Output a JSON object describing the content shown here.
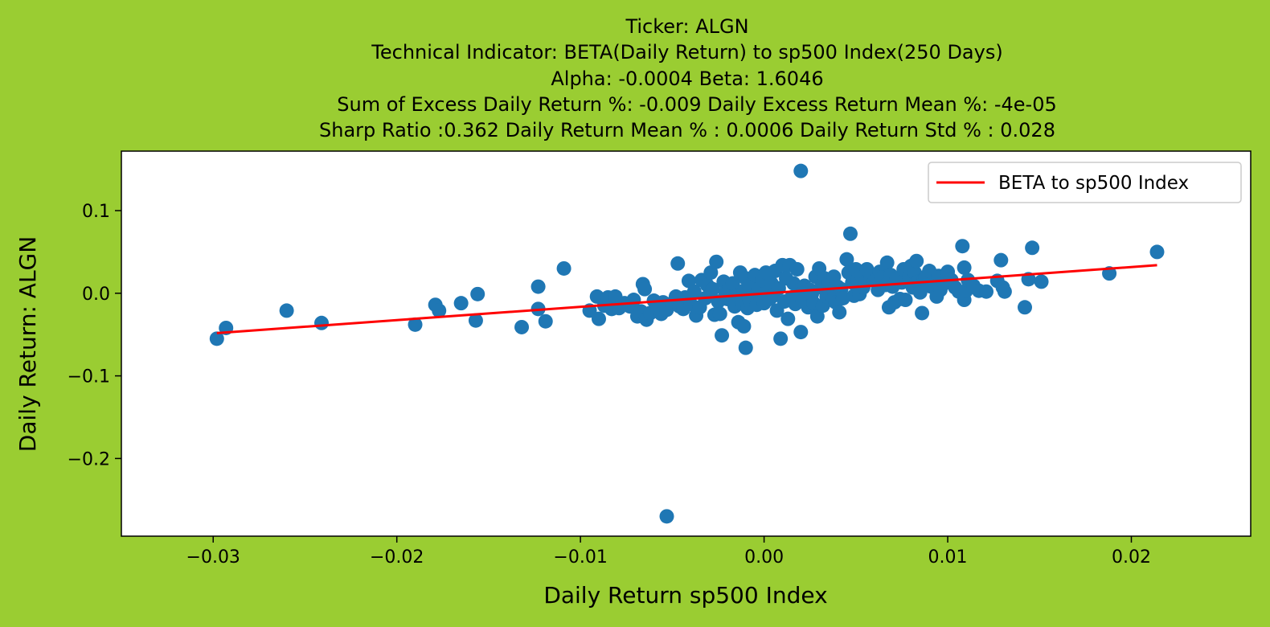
{
  "chart_data": {
    "type": "scatter",
    "title_lines": [
      "Ticker: ALGN",
      "Technical Indicator: BETA(Daily Return) to sp500 Index(250 Days)",
      "Alpha: -0.0004   Beta: 1.6046",
      "Sum of Excess Daily Return %: -0.009   Daily Excess Return Mean %: -4e-05",
      "Sharp Ratio :0.362    Daily Return Mean % : 0.0006    Daily Return Std % : 0.028"
    ],
    "xlabel": "Daily Return sp500 Index",
    "ylabel": "Daily Return: ALGN",
    "xlim": [
      -0.035,
      0.0265
    ],
    "ylim": [
      -0.294,
      0.172
    ],
    "xticks": [
      -0.03,
      -0.02,
      -0.01,
      0.0,
      0.01,
      0.02
    ],
    "xtick_labels": [
      "−0.03",
      "−0.02",
      "−0.01",
      "0.00",
      "0.01",
      "0.02"
    ],
    "yticks": [
      0.1,
      0.0,
      -0.1,
      -0.2
    ],
    "ytick_labels": [
      "0.1",
      "0.0",
      "−0.1",
      "−0.2"
    ],
    "legend": {
      "placement": "top-right",
      "label": "BETA to sp500 Index"
    },
    "colors": {
      "background": "#9acd32",
      "plot_bg": "#ffffff",
      "points": "#1f77b4",
      "regression": "#ff0000"
    },
    "regression": {
      "alpha": -0.0004,
      "beta": 1.6046,
      "x_range": [
        -0.0298,
        0.0214
      ]
    },
    "series": [
      {
        "points": [
          [
            -0.0298,
            -0.055
          ],
          [
            -0.0293,
            -0.042
          ],
          [
            -0.026,
            -0.021
          ],
          [
            -0.0241,
            -0.036
          ],
          [
            -0.019,
            -0.038
          ],
          [
            -0.0179,
            -0.014
          ],
          [
            -0.0177,
            -0.021
          ],
          [
            -0.0165,
            -0.012
          ],
          [
            -0.0157,
            -0.033
          ],
          [
            -0.0156,
            -0.001
          ],
          [
            -0.0132,
            -0.041
          ],
          [
            -0.0123,
            0.008
          ],
          [
            -0.0123,
            -0.019
          ],
          [
            -0.0119,
            -0.034
          ],
          [
            -0.0109,
            0.03
          ],
          [
            -0.0095,
            -0.021
          ],
          [
            -0.0091,
            -0.004
          ],
          [
            -0.009,
            -0.031
          ],
          [
            -0.0087,
            -0.015
          ],
          [
            -0.0085,
            -0.005
          ],
          [
            -0.0083,
            -0.019
          ],
          [
            -0.0081,
            -0.004
          ],
          [
            -0.0079,
            -0.018
          ],
          [
            -0.0076,
            -0.012
          ],
          [
            -0.0073,
            -0.016
          ],
          [
            -0.0071,
            -0.008
          ],
          [
            -0.0069,
            -0.028
          ],
          [
            -0.0067,
            -0.022
          ],
          [
            -0.0066,
            0.011
          ],
          [
            -0.0065,
            0.005
          ],
          [
            -0.0064,
            -0.032
          ],
          [
            -0.0062,
            -0.024
          ],
          [
            -0.006,
            -0.009
          ],
          [
            -0.0058,
            -0.019
          ],
          [
            -0.0056,
            -0.025
          ],
          [
            -0.0055,
            -0.011
          ],
          [
            -0.0053,
            -0.02
          ],
          [
            -0.005,
            -0.012
          ],
          [
            -0.0048,
            -0.004
          ],
          [
            -0.0047,
            0.036
          ],
          [
            -0.0046,
            -0.016
          ],
          [
            -0.0044,
            -0.019
          ],
          [
            -0.0043,
            -0.005
          ],
          [
            -0.0041,
            0.015
          ],
          [
            -0.004,
            -0.013
          ],
          [
            -0.0038,
            0.002
          ],
          [
            -0.0037,
            -0.027
          ],
          [
            -0.0035,
            -0.017
          ],
          [
            -0.0034,
            0.016
          ],
          [
            -0.0032,
            -0.006
          ],
          [
            -0.0031,
            0.01
          ],
          [
            -0.0029,
            0.025
          ],
          [
            -0.0028,
            0.005
          ],
          [
            -0.0027,
            -0.026
          ],
          [
            -0.0026,
            0.038
          ],
          [
            -0.0025,
            -0.01
          ],
          [
            -0.0024,
            -0.025
          ],
          [
            -0.0023,
            -0.051
          ],
          [
            -0.0022,
            0.014
          ],
          [
            -0.0021,
            0.001
          ],
          [
            -0.002,
            -0.007
          ],
          [
            -0.0019,
            0.006
          ],
          [
            -0.0018,
            -0.002
          ],
          [
            -0.0017,
            0.012
          ],
          [
            -0.0016,
            -0.016
          ],
          [
            -0.0015,
            -0.003
          ],
          [
            -0.0014,
            -0.035
          ],
          [
            -0.0013,
            0.025
          ],
          [
            -0.0012,
            -0.012
          ],
          [
            -0.0011,
            0.003
          ],
          [
            -0.0011,
            -0.04
          ],
          [
            -0.001,
            0.018
          ],
          [
            -0.001,
            -0.066
          ],
          [
            -0.0009,
            -0.018
          ],
          [
            -0.0008,
            -0.008
          ],
          [
            -0.0008,
            0.009
          ],
          [
            -0.0007,
            -0.013
          ],
          [
            -0.0006,
            -0.002
          ],
          [
            -0.0005,
            0.022
          ],
          [
            -0.0004,
            -0.014
          ],
          [
            -0.0003,
            0.005
          ],
          [
            -0.0002,
            -0.006
          ],
          [
            -0.0001,
            0.016
          ],
          [
            0.0,
            -0.012
          ],
          [
            0.0001,
            0.025
          ],
          [
            0.0002,
            0.001
          ],
          [
            0.0003,
            -0.007
          ],
          [
            0.0004,
            0.012
          ],
          [
            0.0005,
            -0.003
          ],
          [
            0.0006,
            0.027
          ],
          [
            0.0007,
            -0.021
          ],
          [
            0.0008,
            0.006
          ],
          [
            0.0009,
            -0.055
          ],
          [
            0.001,
            0.034
          ],
          [
            0.0011,
            -0.01
          ],
          [
            0.0012,
            0.018
          ],
          [
            0.0013,
            -0.031
          ],
          [
            0.0014,
            0.034
          ],
          [
            0.0015,
            -0.005
          ],
          [
            0.0016,
            0.012
          ],
          [
            0.0017,
            -0.013
          ],
          [
            0.0018,
            0.029
          ],
          [
            0.0019,
            0.003
          ],
          [
            0.002,
            0.148
          ],
          [
            0.002,
            -0.047
          ],
          [
            0.0021,
            -0.009
          ],
          [
            0.0022,
            0.009
          ],
          [
            0.0024,
            -0.017
          ],
          [
            0.0025,
            0.004
          ],
          [
            0.0026,
            -0.001
          ],
          [
            0.0027,
            -0.012
          ],
          [
            0.0028,
            0.02
          ],
          [
            0.0029,
            -0.028
          ],
          [
            0.003,
            0.03
          ],
          [
            0.0031,
            0.007
          ],
          [
            0.0032,
            -0.015
          ],
          [
            0.0033,
            0.018
          ],
          [
            0.0034,
            -0.004
          ],
          [
            0.0035,
            0.012
          ],
          [
            0.0036,
            0.001
          ],
          [
            0.0037,
            -0.008
          ],
          [
            0.0038,
            0.02
          ],
          [
            0.0039,
            -0.011
          ],
          [
            0.004,
            0.008
          ],
          [
            0.0041,
            -0.023
          ],
          [
            0.0042,
            0.005
          ],
          [
            0.0043,
            -0.006
          ],
          [
            0.0045,
            0.041
          ],
          [
            0.0046,
            0.025
          ],
          [
            0.0047,
            0.072
          ],
          [
            0.0048,
            0.013
          ],
          [
            0.0049,
            -0.003
          ],
          [
            0.005,
            0.029
          ],
          [
            0.0051,
            0.016
          ],
          [
            0.0052,
            -0.001
          ],
          [
            0.0053,
            0.022
          ],
          [
            0.0054,
            0.007
          ],
          [
            0.0055,
            0.013
          ],
          [
            0.0056,
            0.029
          ],
          [
            0.0058,
            0.02
          ],
          [
            0.006,
            0.015
          ],
          [
            0.0062,
            0.004
          ],
          [
            0.0063,
            0.026
          ],
          [
            0.0064,
            0.019
          ],
          [
            0.0066,
            0.01
          ],
          [
            0.0067,
            0.037
          ],
          [
            0.0068,
            -0.017
          ],
          [
            0.0069,
            0.022
          ],
          [
            0.007,
            0.008
          ],
          [
            0.0071,
            -0.011
          ],
          [
            0.0072,
            0.017
          ],
          [
            0.0074,
            -0.007
          ],
          [
            0.0075,
            0.013
          ],
          [
            0.0076,
            0.029
          ],
          [
            0.0077,
            -0.008
          ],
          [
            0.0079,
            0.021
          ],
          [
            0.008,
            0.033
          ],
          [
            0.0081,
            0.007
          ],
          [
            0.0082,
            0.025
          ],
          [
            0.0083,
            0.039
          ],
          [
            0.0084,
            0.014
          ],
          [
            0.0085,
            0.001
          ],
          [
            0.0086,
            -0.024
          ],
          [
            0.0087,
            0.017
          ],
          [
            0.0088,
            0.02
          ],
          [
            0.009,
            0.027
          ],
          [
            0.0091,
            0.008
          ],
          [
            0.0093,
            0.015
          ],
          [
            0.0094,
            -0.004
          ],
          [
            0.0095,
            0.021
          ],
          [
            0.0096,
            0.004
          ],
          [
            0.0098,
            0.012
          ],
          [
            0.01,
            0.026
          ],
          [
            0.0102,
            0.016
          ],
          [
            0.0104,
            0.007
          ],
          [
            0.0106,
            0.002
          ],
          [
            0.0108,
            0.057
          ],
          [
            0.0109,
            -0.008
          ],
          [
            0.0109,
            0.031
          ],
          [
            0.011,
            0.003
          ],
          [
            0.0111,
            0.016
          ],
          [
            0.0114,
            0.009
          ],
          [
            0.0117,
            0.003
          ],
          [
            0.0121,
            0.002
          ],
          [
            0.0127,
            0.015
          ],
          [
            0.0129,
            0.04
          ],
          [
            0.013,
            0.007
          ],
          [
            0.0131,
            0.002
          ],
          [
            0.0142,
            -0.017
          ],
          [
            0.0144,
            0.017
          ],
          [
            0.0146,
            0.055
          ],
          [
            0.0151,
            0.014
          ],
          [
            0.0188,
            0.024
          ],
          [
            0.0214,
            0.05
          ],
          [
            -0.0053,
            -0.27
          ]
        ]
      }
    ]
  }
}
